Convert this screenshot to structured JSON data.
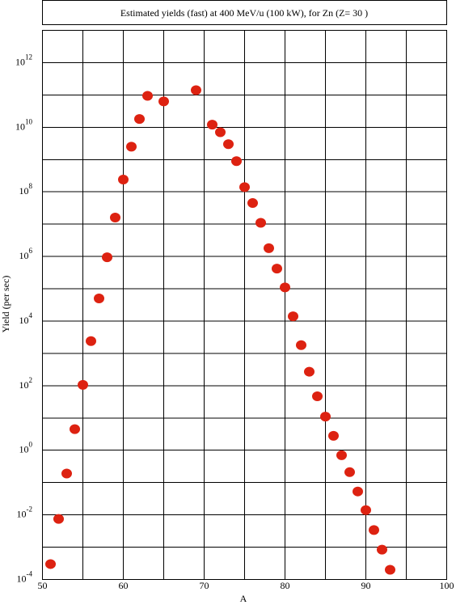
{
  "chart_data": {
    "type": "scatter",
    "title": "Estimated yields (fast) at 400 MeV/u (100 kW), for Zn (Z= 30 )",
    "x_label": "A",
    "y_label": "Yield (per sec)",
    "y_scale": "log",
    "grid": true,
    "xlim": [
      50,
      100
    ],
    "xticks": [
      50,
      60,
      70,
      80,
      90,
      100
    ],
    "xgrid": [
      55,
      65,
      75,
      85,
      95
    ],
    "ylim": [
      0.0001,
      10000000000000
    ],
    "yticks": [
      {
        "value": 0.0001,
        "label": "10",
        "exponent": "-4"
      },
      {
        "value": 0.01,
        "label": "10",
        "exponent": "-2"
      },
      {
        "value": 1,
        "label": "10",
        "exponent": "0"
      },
      {
        "value": 100,
        "label": "10",
        "exponent": "2"
      },
      {
        "value": 10000,
        "label": "10",
        "exponent": "4"
      },
      {
        "value": 1000000,
        "label": "10",
        "exponent": "6"
      },
      {
        "value": 100000000,
        "label": "10",
        "exponent": "8"
      },
      {
        "value": 10000000000,
        "label": "10",
        "exponent": "10"
      },
      {
        "value": 1000000000000,
        "label": "10",
        "exponent": "12"
      }
    ],
    "ygrid": [
      0.001,
      0.1,
      10,
      1000,
      100000,
      10000000,
      1000000000,
      100000000000,
      10000000000000
    ],
    "color": "#dd2211",
    "x": [
      51,
      52,
      53,
      54,
      55,
      56,
      57,
      58,
      59,
      60,
      61,
      62,
      63,
      65,
      69,
      71,
      72,
      73,
      74,
      75,
      76,
      77,
      78,
      79,
      80,
      81,
      82,
      83,
      84,
      85,
      86,
      87,
      88,
      89,
      90,
      91,
      92,
      93
    ],
    "values": [
      0.0003,
      0.0075,
      0.19,
      4.5,
      106,
      2400,
      50000,
      940000,
      16000000,
      240000000,
      2500000000,
      18000000000,
      94000000000,
      63000000000,
      140000000000,
      12000000000,
      7000000000,
      3000000000,
      890000000,
      140000000,
      45000000,
      11000000,
      1800000,
      420000,
      110000,
      14000,
      1800,
      270,
      47,
      11,
      2.8,
      0.7,
      0.21,
      0.053,
      0.014,
      0.0034,
      0.00084,
      0.0002
    ]
  }
}
